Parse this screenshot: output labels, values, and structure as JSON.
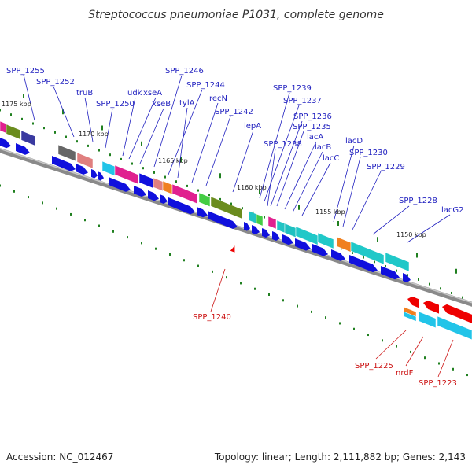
{
  "title": "Streptococcus pneumoniae P1031, complete genome",
  "footer": {
    "accession": "Accession: NC_012467",
    "summary": "Topology: linear; Length: 2,111,882 bp; Genes: 2,143"
  },
  "colors": {
    "top_label": "#1f1fbf",
    "bottom_label": "#cc1111",
    "arrow_blue": "#1010dd",
    "arrow_red": "#ee0000",
    "backbone": "#8a8a8a",
    "tick": "#208020",
    "marker": "#ee0000"
  },
  "scale_labels": [
    "1175 kbp",
    "1170 kbp",
    "1165 kbp",
    "1160 kbp",
    "1155 kbp",
    "1150 kbp"
  ],
  "top_labels": [
    "SPP_1255",
    "SPP_1252",
    "truB",
    "SPP_1250",
    "udk",
    "xseA",
    "xseB",
    "SPP_1246",
    "SPP_1244",
    "tylA",
    "recN",
    "SPP_1242",
    "lepA",
    "SPP_1239",
    "SPP_1237",
    "SPP_1238",
    "SPP_1236",
    "SPP_1235",
    "lacA",
    "lacB",
    "lacC",
    "lacD",
    "SPP_1230",
    "SPP_1229",
    "SPP_1228",
    "lacG2"
  ],
  "bottom_labels": [
    "SPP_1240",
    "SPP_1225",
    "nrdF",
    "SPP_1223"
  ]
}
